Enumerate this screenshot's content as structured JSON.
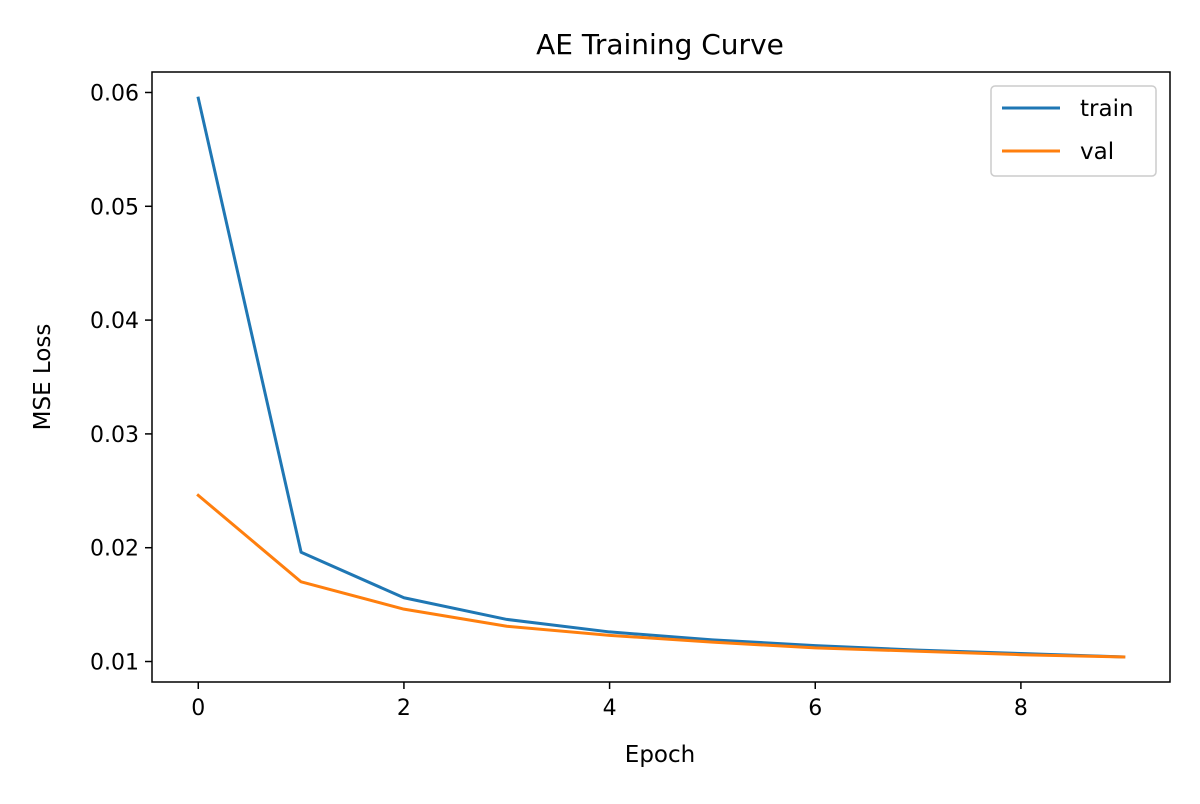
{
  "chart_data": {
    "type": "line",
    "title": "AE Training Curve",
    "xlabel": "Epoch",
    "ylabel": "MSE Loss",
    "x": [
      0,
      1,
      2,
      3,
      4,
      5,
      6,
      7,
      8,
      9
    ],
    "xlim": [
      -0.45,
      9.45
    ],
    "ylim": [
      0.0082,
      0.0618
    ],
    "xticks": [
      0,
      2,
      4,
      6,
      8
    ],
    "xtick_labels": [
      "0",
      "2",
      "4",
      "6",
      "8"
    ],
    "yticks": [
      0.01,
      0.02,
      0.03,
      0.04,
      0.05,
      0.06
    ],
    "ytick_labels": [
      "0.01",
      "0.02",
      "0.03",
      "0.04",
      "0.05",
      "0.06"
    ],
    "grid": false,
    "legend_position": "top-right",
    "series": [
      {
        "name": "train",
        "color": "#1f77b4",
        "values": [
          0.0595,
          0.0196,
          0.0156,
          0.0137,
          0.0126,
          0.0119,
          0.0114,
          0.011,
          0.0107,
          0.0104
        ]
      },
      {
        "name": "val",
        "color": "#ff7f0e",
        "values": [
          0.0246,
          0.017,
          0.0146,
          0.0131,
          0.0123,
          0.0117,
          0.0112,
          0.0109,
          0.0106,
          0.0104
        ]
      }
    ]
  }
}
